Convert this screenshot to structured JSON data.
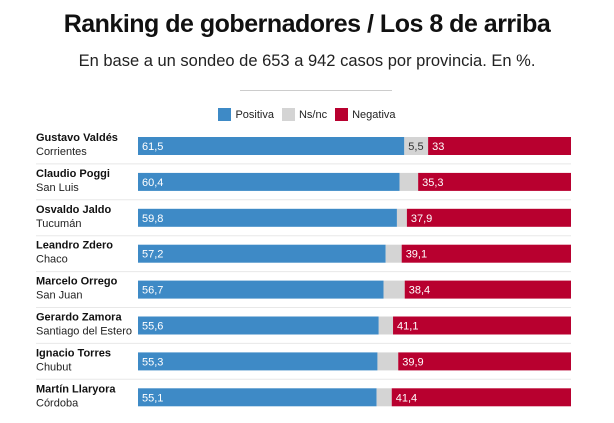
{
  "chart_data": {
    "type": "bar",
    "orientation": "horizontal",
    "stacked": true,
    "title": "Ranking de gobernadores / Los 8 de arriba",
    "subtitle": "En base a un sondeo de 653 a 942 casos por provincia. En %.",
    "legend_position": "top",
    "grid": false,
    "xlim": [
      0,
      100
    ],
    "categories": [
      {
        "name": "Gustavo Valdés",
        "province": "Corrientes"
      },
      {
        "name": "Claudio Poggi",
        "province": "San Luis"
      },
      {
        "name": "Osvaldo Jaldo",
        "province": "Tucumán"
      },
      {
        "name": "Leandro Zdero",
        "province": "Chaco"
      },
      {
        "name": "Marcelo Orrego",
        "province": "San Juan"
      },
      {
        "name": "Gerardo Zamora",
        "province": "Santiago del Estero"
      },
      {
        "name": "Ignacio Torres",
        "province": "Chubut"
      },
      {
        "name": "Martín Llaryora",
        "province": "Córdoba"
      }
    ],
    "series": [
      {
        "name": "Positiva",
        "color": "#3e8ac6",
        "values": [
          61.5,
          60.4,
          59.8,
          57.2,
          56.7,
          55.6,
          55.3,
          55.1
        ],
        "labels": [
          "61,5",
          "60,4",
          "59,8",
          "57,2",
          "56,7",
          "55,6",
          "55,3",
          "55,1"
        ]
      },
      {
        "name": "Ns/nc",
        "color": "#d4d4d4",
        "values": [
          5.5,
          4.3,
          2.3,
          3.7,
          4.9,
          3.3,
          4.8,
          3.5
        ],
        "labels": [
          "5,5",
          "",
          "",
          "",
          "",
          "",
          "",
          ""
        ]
      },
      {
        "name": "Negativa",
        "color": "#b8002f",
        "values": [
          33,
          35.3,
          37.9,
          39.1,
          38.4,
          41.1,
          39.9,
          41.4
        ],
        "labels": [
          "33",
          "35,3",
          "37,9",
          "39,1",
          "38,4",
          "41,1",
          "39,9",
          "41,4"
        ]
      }
    ]
  }
}
